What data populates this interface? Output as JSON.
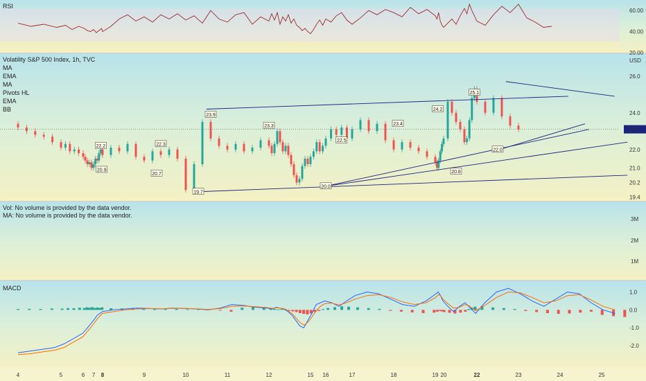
{
  "chart_data": [
    {
      "panel": "rsi",
      "type": "line",
      "title": "RSI",
      "y_ticks": [
        "60.00",
        "40.00",
        "20.00"
      ],
      "ylim": [
        20,
        70
      ],
      "series": [
        {
          "name": "",
          "x": [
            4.0,
            4.3,
            4.6,
            4.9,
            5.2,
            5.5,
            5.8,
            6.1,
            6.4,
            6.7,
            7.0,
            7.3,
            7.6,
            7.9,
            8.0,
            8.2,
            8.4,
            8.6,
            8.8,
            9.0,
            9.2,
            9.4,
            9.6,
            9.8,
            10.0,
            10.2,
            10.4,
            10.6,
            10.8,
            11.0,
            11.2,
            11.4,
            11.6,
            11.8,
            12.0,
            12.2,
            12.4,
            12.6,
            12.8,
            13.0,
            13.2,
            13.4,
            13.6,
            13.8,
            14.0,
            14.2,
            14.4,
            14.6,
            14.8,
            15.0,
            15.2,
            15.4,
            15.6,
            15.8,
            16.0,
            16.2,
            16.4,
            16.6,
            16.8,
            17.0,
            17.2,
            17.4,
            17.6,
            17.8,
            18.0,
            18.2,
            18.4,
            18.6,
            18.8,
            19.0,
            19.2,
            19.4,
            19.6,
            19.8,
            20.0,
            20.2,
            20.4,
            20.6,
            20.8,
            21.0,
            21.2,
            21.4,
            21.6,
            21.8,
            22.0,
            22.2,
            22.4,
            22.6,
            22.8,
            23.0,
            23.2,
            23.4,
            23.6,
            23.8
          ],
          "values": [
            48,
            45,
            47,
            44,
            46,
            42,
            45,
            43,
            41,
            40,
            42,
            39,
            41,
            43,
            40,
            45,
            52,
            56,
            50,
            54,
            49,
            56,
            52,
            57,
            51,
            55,
            48,
            60,
            52,
            49,
            56,
            58,
            47,
            54,
            50,
            57,
            51,
            58,
            47,
            54,
            50,
            56,
            48,
            52,
            46,
            44,
            41,
            43,
            40,
            38,
            42,
            47,
            51,
            46,
            52,
            49,
            55,
            58,
            51,
            47,
            53,
            60,
            56,
            61,
            58,
            54,
            63,
            57,
            61,
            55,
            52,
            58,
            50,
            46,
            44,
            48,
            52,
            47,
            55,
            62,
            57,
            66,
            60,
            55,
            50,
            46,
            56,
            64,
            58,
            66,
            53,
            49,
            44,
            45
          ],
          "color": "#9c2b2b"
        }
      ]
    },
    {
      "panel": "price",
      "type": "candlestick",
      "title": "Volatility S&P 500 Index, 1h, TVC",
      "y_unit": "USD",
      "y_ticks": [
        "26.0",
        "24.0",
        "22.0",
        "21.0",
        "20.2",
        "19.4"
      ],
      "ylim": [
        19.2,
        27.2
      ],
      "last_value": "23.1",
      "legend": [
        "MA",
        "EMA",
        "MA",
        "Pivots HL",
        "EMA",
        "BB"
      ],
      "pivot_labels": [
        {
          "text": "22.2",
          "x": 7.8,
          "y": 22.2
        },
        {
          "text": "20.9",
          "x": 7.9,
          "y": 20.9
        },
        {
          "text": "22.3",
          "x": 9.4,
          "y": 22.3
        },
        {
          "text": "20.7",
          "x": 9.3,
          "y": 20.7
        },
        {
          "text": "23.9",
          "x": 10.6,
          "y": 23.9
        },
        {
          "text": "19.7",
          "x": 10.3,
          "y": 19.7
        },
        {
          "text": "23.3",
          "x": 12.0,
          "y": 23.3
        },
        {
          "text": "20.0",
          "x": 16.0,
          "y": 20.0
        },
        {
          "text": "22.5",
          "x": 16.6,
          "y": 22.5
        },
        {
          "text": "23.4",
          "x": 18.1,
          "y": 23.4
        },
        {
          "text": "24.2",
          "x": 19.3,
          "y": 24.2
        },
        {
          "text": "20.8",
          "x": 20.6,
          "y": 20.8
        },
        {
          "text": "25.1",
          "x": 21.8,
          "y": 25.1
        },
        {
          "text": "22.0",
          "x": 22.5,
          "y": 22.0
        }
      ],
      "candles_close": [
        23.2,
        23.0,
        22.8,
        22.7,
        22.4,
        22.1,
        22.3,
        21.9,
        22.0,
        21.8,
        21.6,
        21.4,
        21.2,
        21.3,
        21.0,
        21.2,
        21.5,
        21.4,
        21.8,
        22.0,
        21.7,
        22.1,
        21.9,
        22.3,
        21.6,
        21.4,
        21.9,
        21.7,
        22.0,
        21.5,
        19.8,
        21.2,
        23.5,
        22.6,
        22.2,
        22.0,
        22.3,
        21.9,
        22.1,
        22.5,
        22.2,
        21.8,
        22.3,
        23.0,
        22.4,
        21.9,
        22.2,
        21.7,
        21.2,
        20.6,
        20.2,
        20.4,
        21.1,
        21.5,
        21.2,
        21.6,
        21.9,
        22.4,
        21.9,
        22.2,
        22.6,
        23.1,
        22.8,
        23.2,
        22.6,
        23.1,
        23.6,
        23.0,
        23.4,
        22.5,
        22.0,
        22.4,
        22.1,
        21.9,
        21.6,
        21.3,
        21.0,
        21.4,
        21.9,
        22.3,
        22.6,
        24.6,
        24.0,
        23.5,
        23.1,
        22.4,
        22.6,
        23.6,
        24.8,
        25.3,
        24.6,
        24.0,
        24.8,
        23.8,
        23.3,
        23.1
      ],
      "x_start": 4.0,
      "x_step": 0.2,
      "trendlines": [
        {
          "x1": 10.5,
          "y1": 24.2,
          "x2": 24.2,
          "y2": 24.9
        },
        {
          "x1": 10.3,
          "y1": 19.7,
          "x2": 25.6,
          "y2": 20.6
        },
        {
          "x1": 16.0,
          "y1": 20.0,
          "x2": 24.7,
          "y2": 23.1
        },
        {
          "x1": 16.0,
          "y1": 20.0,
          "x2": 25.6,
          "y2": 22.4
        },
        {
          "x1": 22.7,
          "y1": 25.7,
          "x2": 25.3,
          "y2": 24.9
        },
        {
          "x1": 22.4,
          "y1": 21.9,
          "x2": 24.6,
          "y2": 23.4
        }
      ]
    },
    {
      "panel": "volume",
      "type": "bar",
      "title": "",
      "notes": [
        "Vol: No volume is provided by the data vendor.",
        "MA: No volume is provided by the data vendor."
      ],
      "y_ticks": [
        "3M",
        "2M",
        "1M"
      ]
    },
    {
      "panel": "macd",
      "type": "bar",
      "title": "MACD",
      "y_ticks": [
        "1.0",
        "0.0",
        "-1.0",
        "-2.0"
      ],
      "ylim": [
        -3.2,
        1.6
      ],
      "histogram": [
        0.05,
        0.06,
        0.05,
        0.08,
        0.07,
        0.1,
        0.09,
        0.12,
        0.1,
        0.14,
        0.12,
        0.15,
        0.1,
        0.13,
        0.11,
        0.14,
        0.09,
        0.08,
        0.1,
        0.06,
        0.07,
        0.05,
        0.06,
        0.04,
        0.07,
        0.05,
        -0.03,
        -0.1,
        0.12,
        0.2,
        0.15,
        0.1,
        0.06,
        0.03,
        0.05,
        0.02,
        -0.04,
        -0.08,
        -0.12,
        -0.18,
        -0.22,
        -0.25,
        -0.2,
        -0.12,
        -0.06,
        0.04,
        0.1,
        0.15,
        0.2,
        0.18,
        0.14,
        0.1,
        0.06,
        -0.05,
        -0.1,
        -0.14,
        -0.18,
        -0.15,
        -0.1,
        -0.05,
        -0.08,
        -0.12,
        -0.16,
        -0.2,
        -0.15,
        -0.1,
        0.05,
        0.12,
        0.18,
        0.2,
        0.14,
        0.1,
        0.05,
        -0.06,
        -0.12,
        -0.18,
        -0.22,
        -0.2,
        -0.15,
        -0.1,
        -0.28,
        -0.35,
        -0.4
      ],
      "macd_line": [
        -2.4,
        -2.3,
        -2.2,
        -2.1,
        -1.9,
        -1.7,
        -1.5,
        -1.3,
        -1.1,
        -0.9,
        -0.7,
        -0.5,
        -0.3,
        -0.2,
        -0.1,
        0.0,
        0.05,
        0.1,
        0.08,
        0.05,
        0.1,
        0.08,
        0.05,
        0.0,
        0.1,
        0.3,
        0.25,
        0.15,
        0.1,
        0.05,
        0.15,
        0.1,
        0.05,
        -0.1,
        -0.3,
        -0.6,
        -0.9,
        -1.0,
        -0.6,
        -0.2,
        0.3,
        0.4,
        0.5,
        0.4,
        0.2,
        0.5,
        0.8,
        1.0,
        0.9,
        0.6,
        0.3,
        0.2,
        0.5,
        0.9,
        1.0,
        0.8,
        0.5,
        0.2,
        -0.1,
        0.2,
        0.4,
        0.2,
        0.0,
        -0.2,
        0.4,
        1.0,
        1.2,
        0.9,
        0.5,
        0.2,
        0.6,
        1.0,
        0.9,
        0.4,
        0.0,
        -0.2
      ],
      "signal_line": [
        -2.5,
        -2.45,
        -2.35,
        -2.25,
        -2.1,
        -1.9,
        -1.7,
        -1.5,
        -1.3,
        -1.1,
        -0.9,
        -0.7,
        -0.5,
        -0.35,
        -0.2,
        -0.1,
        0.0,
        0.05,
        0.07,
        0.06,
        0.08,
        0.08,
        0.06,
        0.03,
        0.07,
        0.2,
        0.22,
        0.18,
        0.13,
        0.08,
        0.12,
        0.1,
        0.07,
        -0.05,
        -0.2,
        -0.45,
        -0.7,
        -0.85,
        -0.7,
        -0.4,
        -0.05,
        0.2,
        0.35,
        0.38,
        0.28,
        0.4,
        0.6,
        0.8,
        0.85,
        0.7,
        0.45,
        0.3,
        0.4,
        0.7,
        0.85,
        0.8,
        0.6,
        0.35,
        0.1,
        0.15,
        0.3,
        0.25,
        0.1,
        -0.05,
        0.25,
        0.7,
        1.0,
        0.95,
        0.7,
        0.4,
        0.5,
        0.8,
        0.85,
        0.55,
        0.2,
        0.0
      ]
    }
  ],
  "x_axis_labels": [
    {
      "text": "4",
      "x": 4,
      "bold": false
    },
    {
      "text": "5",
      "x": 5,
      "bold": false
    },
    {
      "text": "6",
      "x": 6,
      "bold": false
    },
    {
      "text": "7",
      "x": 7,
      "bold": false
    },
    {
      "text": "8",
      "x": 8,
      "bold": true
    },
    {
      "text": "9",
      "x": 9,
      "bold": false
    },
    {
      "text": "10",
      "x": 10,
      "bold": false
    },
    {
      "text": "11",
      "x": 11,
      "bold": false
    },
    {
      "text": "12",
      "x": 12,
      "bold": false
    },
    {
      "text": "15",
      "x": 15,
      "bold": false
    },
    {
      "text": "16",
      "x": 16,
      "bold": false
    },
    {
      "text": "17",
      "x": 17,
      "bold": false
    },
    {
      "text": "18",
      "x": 18,
      "bold": false
    },
    {
      "text": "19",
      "x": 19,
      "bold": false
    },
    {
      "text": "20",
      "x": 20,
      "bold": false
    },
    {
      "text": "22",
      "x": 22,
      "bold": true
    },
    {
      "text": "23",
      "x": 23,
      "bold": false
    },
    {
      "text": "24",
      "x": 24,
      "bold": false
    },
    {
      "text": "25",
      "x": 25,
      "bold": false
    }
  ],
  "colors": {
    "up": "#26a69a",
    "down": "#ef5350",
    "drawing": "#1a237e",
    "rsi": "#9c2b2b",
    "bb": "#1b7a3a"
  }
}
